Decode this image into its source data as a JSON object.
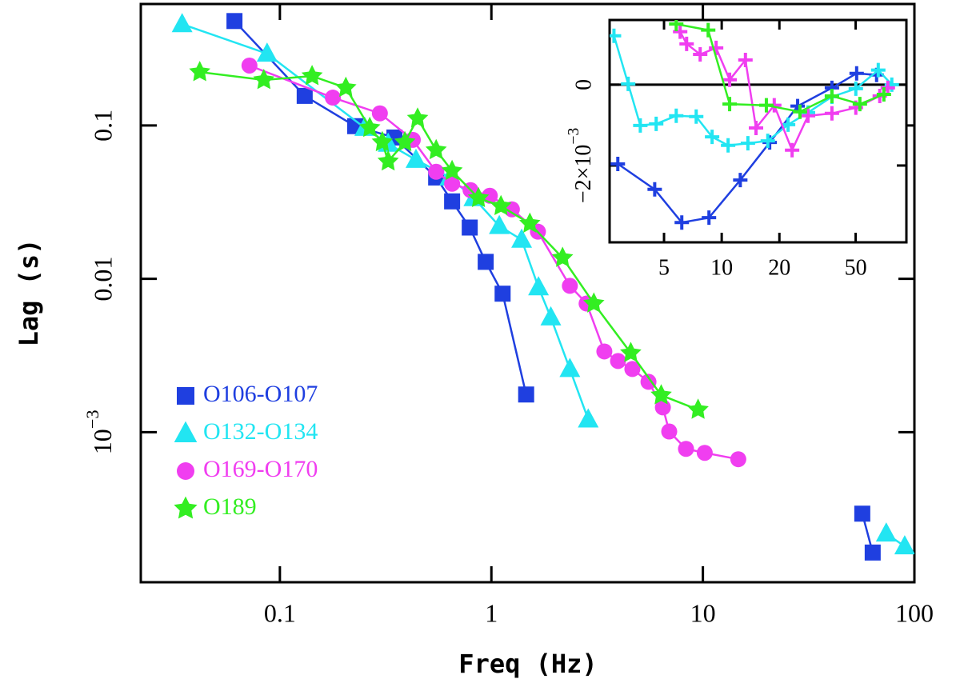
{
  "chart_data": [
    {
      "type": "line",
      "xlabel": "Freq (Hz)",
      "ylabel": "Lag (s)",
      "xscale": "log",
      "yscale": "log",
      "xlim": [
        0.022,
        100
      ],
      "ylim": [
        0.000105,
        0.62
      ],
      "xticks": [
        0.1,
        1,
        10,
        100
      ],
      "yticks": [
        {
          "value": 0.001,
          "label": "10",
          "exponent": "−3"
        },
        0.01,
        0.1
      ],
      "legend": "lower left",
      "series": [
        {
          "name": "O106-O107",
          "color": "#1f3fe0",
          "marker": "square",
          "x": [
            0.061,
            0.131,
            0.227,
            0.348,
            0.548,
            0.652,
            0.79,
            0.94,
            1.13,
            1.46,
            null,
            56.7,
            63.5
          ],
          "values": [
            0.48,
            0.156,
            0.099,
            0.0835,
            0.0458,
            0.032,
            0.0216,
            0.0129,
            0.008,
            0.00176,
            null,
            0.000294,
            0.000164
          ]
        },
        {
          "name": "O132-O134",
          "color": "#22e5f2",
          "marker": "triangle",
          "x": [
            0.0345,
            0.087,
            0.252,
            0.325,
            0.44,
            0.636,
            0.826,
            1.09,
            1.39,
            1.67,
            1.91,
            2.35,
            2.87,
            null,
            73.6,
            90
          ],
          "values": [
            0.458,
            0.294,
            0.0965,
            0.076,
            0.0597,
            0.0458,
            0.0336,
            0.0221,
            0.018,
            0.0088,
            0.0056,
            0.00258,
            0.00121,
            null,
            0.000218,
            0.00018
          ]
        },
        {
          "name": "O169-O170",
          "color": "#f03ef0",
          "marker": "circle",
          "x": [
            0.0718,
            0.178,
            0.297,
            0.425,
            0.548,
            0.652,
            0.797,
            0.983,
            1.25,
            1.66,
            2.35,
            2.82,
            3.42,
            3.97,
            4.64,
            5.53,
            6.47,
            6.93,
            8.32,
            10.2,
            14.7
          ],
          "values": [
            0.246,
            0.152,
            0.12,
            0.0806,
            0.0499,
            0.0417,
            0.0379,
            0.0348,
            0.0284,
            0.0203,
            0.009,
            0.0069,
            0.00336,
            0.00291,
            0.00258,
            0.00213,
            0.00145,
            0.00101,
            0.000778,
            0.000733,
            0.000666
          ]
        },
        {
          "name": "O189",
          "color": "#33ee22",
          "marker": "star",
          "x": [
            0.0418,
            0.084,
            0.142,
            0.205,
            0.266,
            0.305,
            0.325,
            0.39,
            0.448,
            0.548,
            0.652,
            0.869,
            1.11,
            1.52,
            2.17,
            3.05,
            4.56,
            6.35,
            9.49
          ],
          "values": [
            0.223,
            0.198,
            0.21,
            0.176,
            0.0965,
            0.0778,
            0.0583,
            0.0778,
            0.111,
            0.069,
            0.0505,
            0.0336,
            0.0298,
            0.0229,
            0.0137,
            0.0069,
            0.00328,
            0.00174,
            0.0014
          ]
        }
      ]
    },
    {
      "type": "line",
      "xscale": "log",
      "xlim": [
        2.6,
        92
      ],
      "ylim": [
        -0.0039,
        0.0016
      ],
      "xticks": [
        5,
        10,
        20,
        50
      ],
      "yticks": [
        {
          "value": -0.002,
          "label": "−2×10",
          "exponent": "−3"
        },
        0
      ],
      "hline": 0,
      "series": [
        {
          "color": "#1f3fe0",
          "marker": "cross",
          "x": [
            2.87,
            4.47,
            6.19,
            8.58,
            12.5,
            17.8,
            24.9,
            37.6,
            50.6,
            64.3
          ],
          "values": [
            -0.00196,
            -0.00259,
            -0.00341,
            -0.00329,
            -0.00236,
            -0.00143,
            -0.00053,
            -8e-05,
            0.00028,
            0.00024
          ]
        },
        {
          "color": "#22e5f2",
          "marker": "cross",
          "x": [
            2.74,
            3.25,
            3.76,
            4.55,
            5.79,
            7.36,
            8.91,
            10.8,
            13.7,
            17.4,
            22.2,
            28.2,
            37.6,
            50.1,
            65.6,
            77.2
          ],
          "values": [
            0.00121,
            2e-05,
            -0.00101,
            -0.00097,
            -0.00077,
            -0.00079,
            -0.00129,
            -0.0015,
            -0.00145,
            -0.00139,
            -0.00099,
            -0.00069,
            -0.0003,
            -0.0001,
            0.00036,
            0
          ]
        },
        {
          "color": "#f03ef0",
          "marker": "cross",
          "x": [
            6.07,
            6.56,
            7.72,
            9.35,
            11.0,
            13.3,
            15.1,
            18.8,
            23.3,
            28.2,
            37.6,
            50.1,
            66.8,
            73.6
          ],
          "values": [
            0.00131,
            0.00101,
            0.00075,
            0.00091,
            0.00012,
            0.00061,
            -0.00107,
            -0.00051,
            -0.00162,
            -0.00077,
            -0.00071,
            -0.00057,
            -0.00028,
            -8e-05
          ]
        },
        {
          "color": "#33ee22",
          "marker": "cross",
          "x": [
            5.79,
            8.5,
            11.0,
            17.1,
            25.6,
            37.6,
            52.6,
            70.2
          ],
          "values": [
            0.0015,
            0.00135,
            -0.00048,
            -0.00051,
            -0.00067,
            -0.00028,
            -0.00048,
            -0.00024
          ]
        }
      ]
    }
  ]
}
